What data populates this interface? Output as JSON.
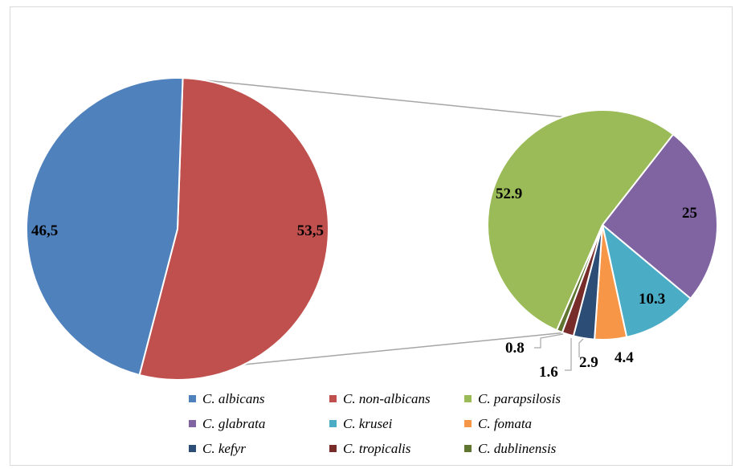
{
  "chart_data": {
    "type": "bar-of-pie",
    "main_pie": [
      {
        "name": "C. albicans",
        "label": "46,5",
        "value": 46.5,
        "color": "#4f81bd"
      },
      {
        "name": "C. non-albicans",
        "label": "53,5",
        "value": 53.5,
        "color": "#c0504d"
      }
    ],
    "secondary_pie": [
      {
        "name": "C. parapsilosis",
        "label": "52.9",
        "value": 52.9,
        "color": "#9bbb59"
      },
      {
        "name": "C. glabrata",
        "label": "25",
        "value": 25,
        "color": "#8064a2"
      },
      {
        "name": "C. krusei",
        "label": "10.3",
        "value": 10.3,
        "color": "#4bacc6"
      },
      {
        "name": "C. fomata",
        "label": "4.4",
        "value": 4.4,
        "color": "#f79646"
      },
      {
        "name": "C. kefyr",
        "label": "2.9",
        "value": 2.9,
        "color": "#2c4d75"
      },
      {
        "name": "C. tropicalis",
        "label": "1.6",
        "value": 1.6,
        "color": "#772c2a"
      },
      {
        "name": "C. dublinensis",
        "label": "0.8",
        "value": 0.8,
        "color": "#5f7530"
      }
    ],
    "legend": {
      "position": "bottom",
      "entries": [
        "C. albicans",
        "C. non-albicans",
        "C. parapsilosis",
        "C. glabrata",
        "C. krusei",
        "C. fomata",
        "C. kefyr",
        "C. tropicalis",
        "C. dublinensis"
      ]
    }
  }
}
